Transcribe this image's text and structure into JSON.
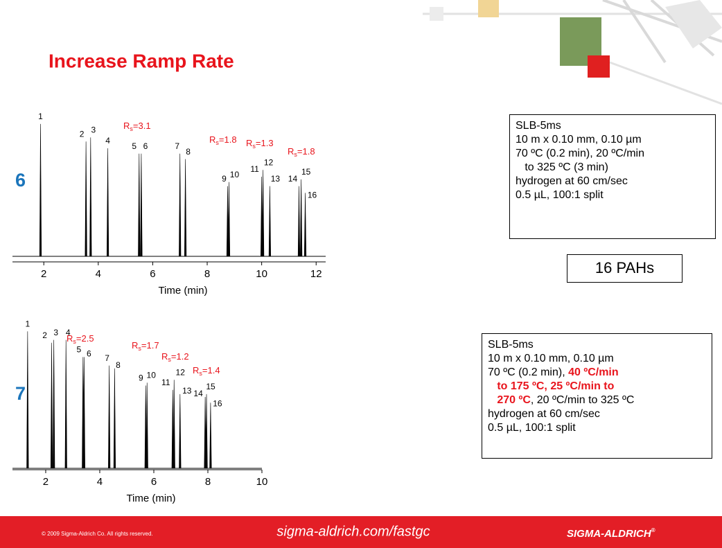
{
  "title": "Increase Ramp Rate",
  "chart_labels": [
    "6",
    "7"
  ],
  "chart_data": [
    {
      "type": "chromatogram",
      "xlabel": "Time (min)",
      "x": [
        1.88,
        3.55,
        3.72,
        4.35,
        5.5,
        5.58,
        7.0,
        7.2,
        8.75,
        8.8,
        10.0,
        10.05,
        10.3,
        11.37,
        11.45,
        11.6
      ],
      "values": [
        98,
        85,
        88,
        80,
        76,
        76,
        76,
        72,
        52,
        55,
        59,
        64,
        52,
        52,
        57,
        47
      ],
      "labels": [
        "1",
        "2",
        "3",
        "4",
        "5",
        "6",
        "7",
        "8",
        "9",
        "10",
        "11",
        "12",
        "13",
        "14",
        "15",
        "16"
      ],
      "xlim": [
        0.85,
        12.35
      ],
      "xticks": [
        2,
        4,
        6,
        8,
        10,
        12
      ],
      "ylim": [
        0,
        100
      ],
      "color": "#000000",
      "annotations": [
        {
          "text": "R",
          "subscript": "s",
          "rest": "=3.1"
        },
        {
          "text": "R",
          "subscript": "s",
          "rest": "=1.8"
        },
        {
          "text": "R",
          "subscript": "s",
          "rest": "=1.3"
        },
        {
          "text": "R",
          "subscript": "s",
          "rest": "=1.8"
        }
      ]
    },
    {
      "type": "chromatogram",
      "xlabel": "Time (min)",
      "x": [
        1.33,
        2.22,
        2.3,
        2.75,
        3.38,
        3.42,
        4.35,
        4.55,
        5.7,
        5.75,
        6.7,
        6.75,
        6.97,
        7.9,
        7.95,
        8.1
      ],
      "values": [
        96,
        88,
        90,
        90,
        78,
        78,
        72,
        70,
        58,
        60,
        55,
        62,
        52,
        50,
        52,
        46
      ],
      "labels": [
        "1",
        "2",
        "3",
        "4",
        "5",
        "6",
        "7",
        "8",
        "9",
        "10",
        "11",
        "12",
        "13",
        "14",
        "15",
        "16"
      ],
      "xlim": [
        0.77,
        10.0
      ],
      "xticks": [
        2,
        4,
        6,
        8,
        10
      ],
      "ylim": [
        0,
        100
      ],
      "color": "#000000",
      "annotations": [
        {
          "text": "R",
          "subscript": "s",
          "rest": "=2.5"
        },
        {
          "text": "R",
          "subscript": "s",
          "rest": "=1.7"
        },
        {
          "text": "R",
          "subscript": "s",
          "rest": "=1.2"
        },
        {
          "text": "R",
          "subscript": "s",
          "rest": "=1.4"
        }
      ]
    }
  ],
  "conditions": [
    [
      [
        {
          "text": "SLB-5ms"
        }
      ],
      [
        {
          "text": "10 m x 0.10 mm, 0.10 µm"
        }
      ],
      [
        {
          "text": "70 ºC (0.2 min), 20 ºC/min"
        }
      ],
      [
        {
          "text": "   to 325 ºC (3 min)"
        }
      ],
      [
        {
          "text": "hydrogen at 60 cm/sec"
        }
      ],
      [
        {
          "text": "0.5 µL, 100:1 split"
        }
      ]
    ],
    [
      [
        {
          "text": "SLB-5ms"
        }
      ],
      [
        {
          "text": "10 m x 0.10 mm, 0.10 µm"
        }
      ],
      [
        {
          "text": "70 ºC (0.2 min), "
        },
        {
          "text": "40 ºC/min",
          "highlight": true
        }
      ],
      [
        {
          "text": "   to 175 ºC, 25 ºC/min to",
          "highlight": true
        }
      ],
      [
        {
          "text": "   270 ºC",
          "highlight": true
        },
        {
          "text": ", 20 ºC/min to 325 ºC"
        }
      ],
      [
        {
          "text": "hydrogen at 60 cm/sec"
        }
      ],
      [
        {
          "text": "0.5 µL, 100:1 split"
        }
      ]
    ]
  ],
  "sample": "16 PAHs",
  "footer": {
    "copyright": "© 2009 Sigma-Aldrich Co. All rights reserved.",
    "url": "sigma-aldrich.com/fastgc",
    "brand": "SIGMA-ALDRICH",
    "mark": "®"
  }
}
